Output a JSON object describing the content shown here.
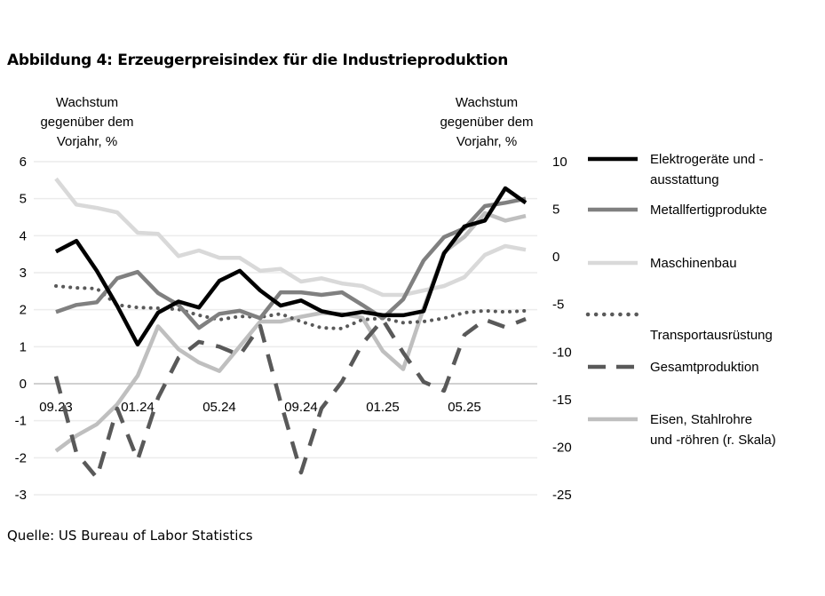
{
  "title": "Abbildung 4: Erzeugerpreisindex für die Industrieproduktion",
  "source": "Quelle: US Bureau of Labor Statistics",
  "chart_data": {
    "type": "line",
    "title": "Abbildung 4: Erzeugerpreisindex für die Industrieproduktion",
    "ylabel_left": [
      "Wachstum",
      "gegenüber dem",
      "Vorjahr, %"
    ],
    "ylabel_right": [
      "Wachstum",
      "gegenüber dem",
      "Vorjahr, %"
    ],
    "ylim_left": [
      -3,
      6
    ],
    "ylim_right": [
      -25,
      10
    ],
    "yticks_left": [
      "6",
      "5",
      "4",
      "3",
      "2",
      "1",
      "0",
      "-1",
      "-2",
      "-3"
    ],
    "yticks_right": [
      "10",
      "5",
      "0",
      "-5",
      "-10",
      "-15",
      "-20",
      "-25"
    ],
    "grid": true,
    "legend": "right",
    "x": [
      "09.23",
      "10.23",
      "11.23",
      "12.23",
      "01.24",
      "02.24",
      "03.24",
      "04.24",
      "05.24",
      "06.24",
      "07.24",
      "08.24",
      "09.24",
      "10.24",
      "11.24",
      "12.24",
      "01.25",
      "02.25",
      "03.25",
      "04.25",
      "05.25",
      "06.25",
      "07.25",
      "08.25"
    ],
    "xtick_labels": [
      "09.23",
      "01.24",
      "05.24",
      "09.24",
      "01.25",
      "05.25"
    ],
    "series": [
      {
        "name": "Elektrogeräte und -ausstattung",
        "axis": "left",
        "color": "#000000",
        "style": "solid",
        "values": [
          3.57,
          3.86,
          3.05,
          2.1,
          1.06,
          1.92,
          2.22,
          2.06,
          2.78,
          3.05,
          2.52,
          2.11,
          2.25,
          1.96,
          1.85,
          1.94,
          1.85,
          1.85,
          1.96,
          3.52,
          4.25,
          4.41,
          5.28,
          4.89
        ]
      },
      {
        "name": "Metallfertigprodukte",
        "axis": "left",
        "color": "#808080",
        "style": "solid",
        "values": [
          1.94,
          2.13,
          2.2,
          2.85,
          3.02,
          2.45,
          2.13,
          1.51,
          1.89,
          1.97,
          1.77,
          2.47,
          2.47,
          2.4,
          2.47,
          2.13,
          1.77,
          2.28,
          3.33,
          3.96,
          4.2,
          4.8,
          4.89,
          5.0
        ]
      },
      {
        "name": "Maschinenbau",
        "axis": "left",
        "color": "#d9d9d9",
        "style": "solid",
        "values": [
          5.54,
          4.84,
          4.75,
          4.63,
          4.08,
          4.05,
          3.45,
          3.6,
          3.4,
          3.4,
          3.05,
          3.1,
          2.76,
          2.85,
          2.71,
          2.64,
          2.4,
          2.4,
          2.52,
          2.64,
          2.88,
          3.48,
          3.72,
          3.62
        ]
      },
      {
        "name": "Transportausrüstung",
        "axis": "left",
        "color": "#595959",
        "style": "dotted",
        "values": [
          2.64,
          2.59,
          2.57,
          2.13,
          2.06,
          2.04,
          2.01,
          1.85,
          1.73,
          1.82,
          1.8,
          1.89,
          1.68,
          1.51,
          1.49,
          1.73,
          1.77,
          1.65,
          1.68,
          1.77,
          1.92,
          1.97,
          1.94,
          1.97
        ]
      },
      {
        "name": "Gesamtproduktion",
        "axis": "left",
        "color": "#595959",
        "style": "dashed",
        "values": [
          0.2,
          -1.87,
          -2.54,
          -0.67,
          -2.06,
          -0.38,
          0.7,
          1.13,
          1.0,
          0.77,
          1.56,
          -0.5,
          -2.4,
          -0.67,
          0.05,
          1.08,
          1.73,
          0.84,
          0.05,
          -0.19,
          1.32,
          1.73,
          1.53,
          1.75
        ]
      },
      {
        "name": "Eisen, Stahlrohre und -röhren (r. Skala)",
        "axis": "right",
        "color": "#bfbfbf",
        "style": "solid",
        "values": [
          -20.4,
          -18.8,
          -17.6,
          -15.5,
          -12.5,
          -7.3,
          -9.7,
          -11.1,
          -12.0,
          -9.4,
          -6.8,
          -6.8,
          -6.3,
          -5.9,
          -6.0,
          -6.4,
          -9.9,
          -11.8,
          -5.4,
          0.5,
          2.1,
          4.6,
          3.8,
          4.3
        ]
      }
    ],
    "legend_labels": [
      [
        "Elektrogeräte und -",
        "ausstattung"
      ],
      [
        "Metallfertigprodukte"
      ],
      [
        "Maschinenbau"
      ],
      [
        "",
        "Transportausrüstung"
      ],
      [
        "Gesamtproduktion"
      ],
      [
        "Eisen, Stahlrohre",
        "und -röhren (r. Skala)"
      ]
    ]
  }
}
